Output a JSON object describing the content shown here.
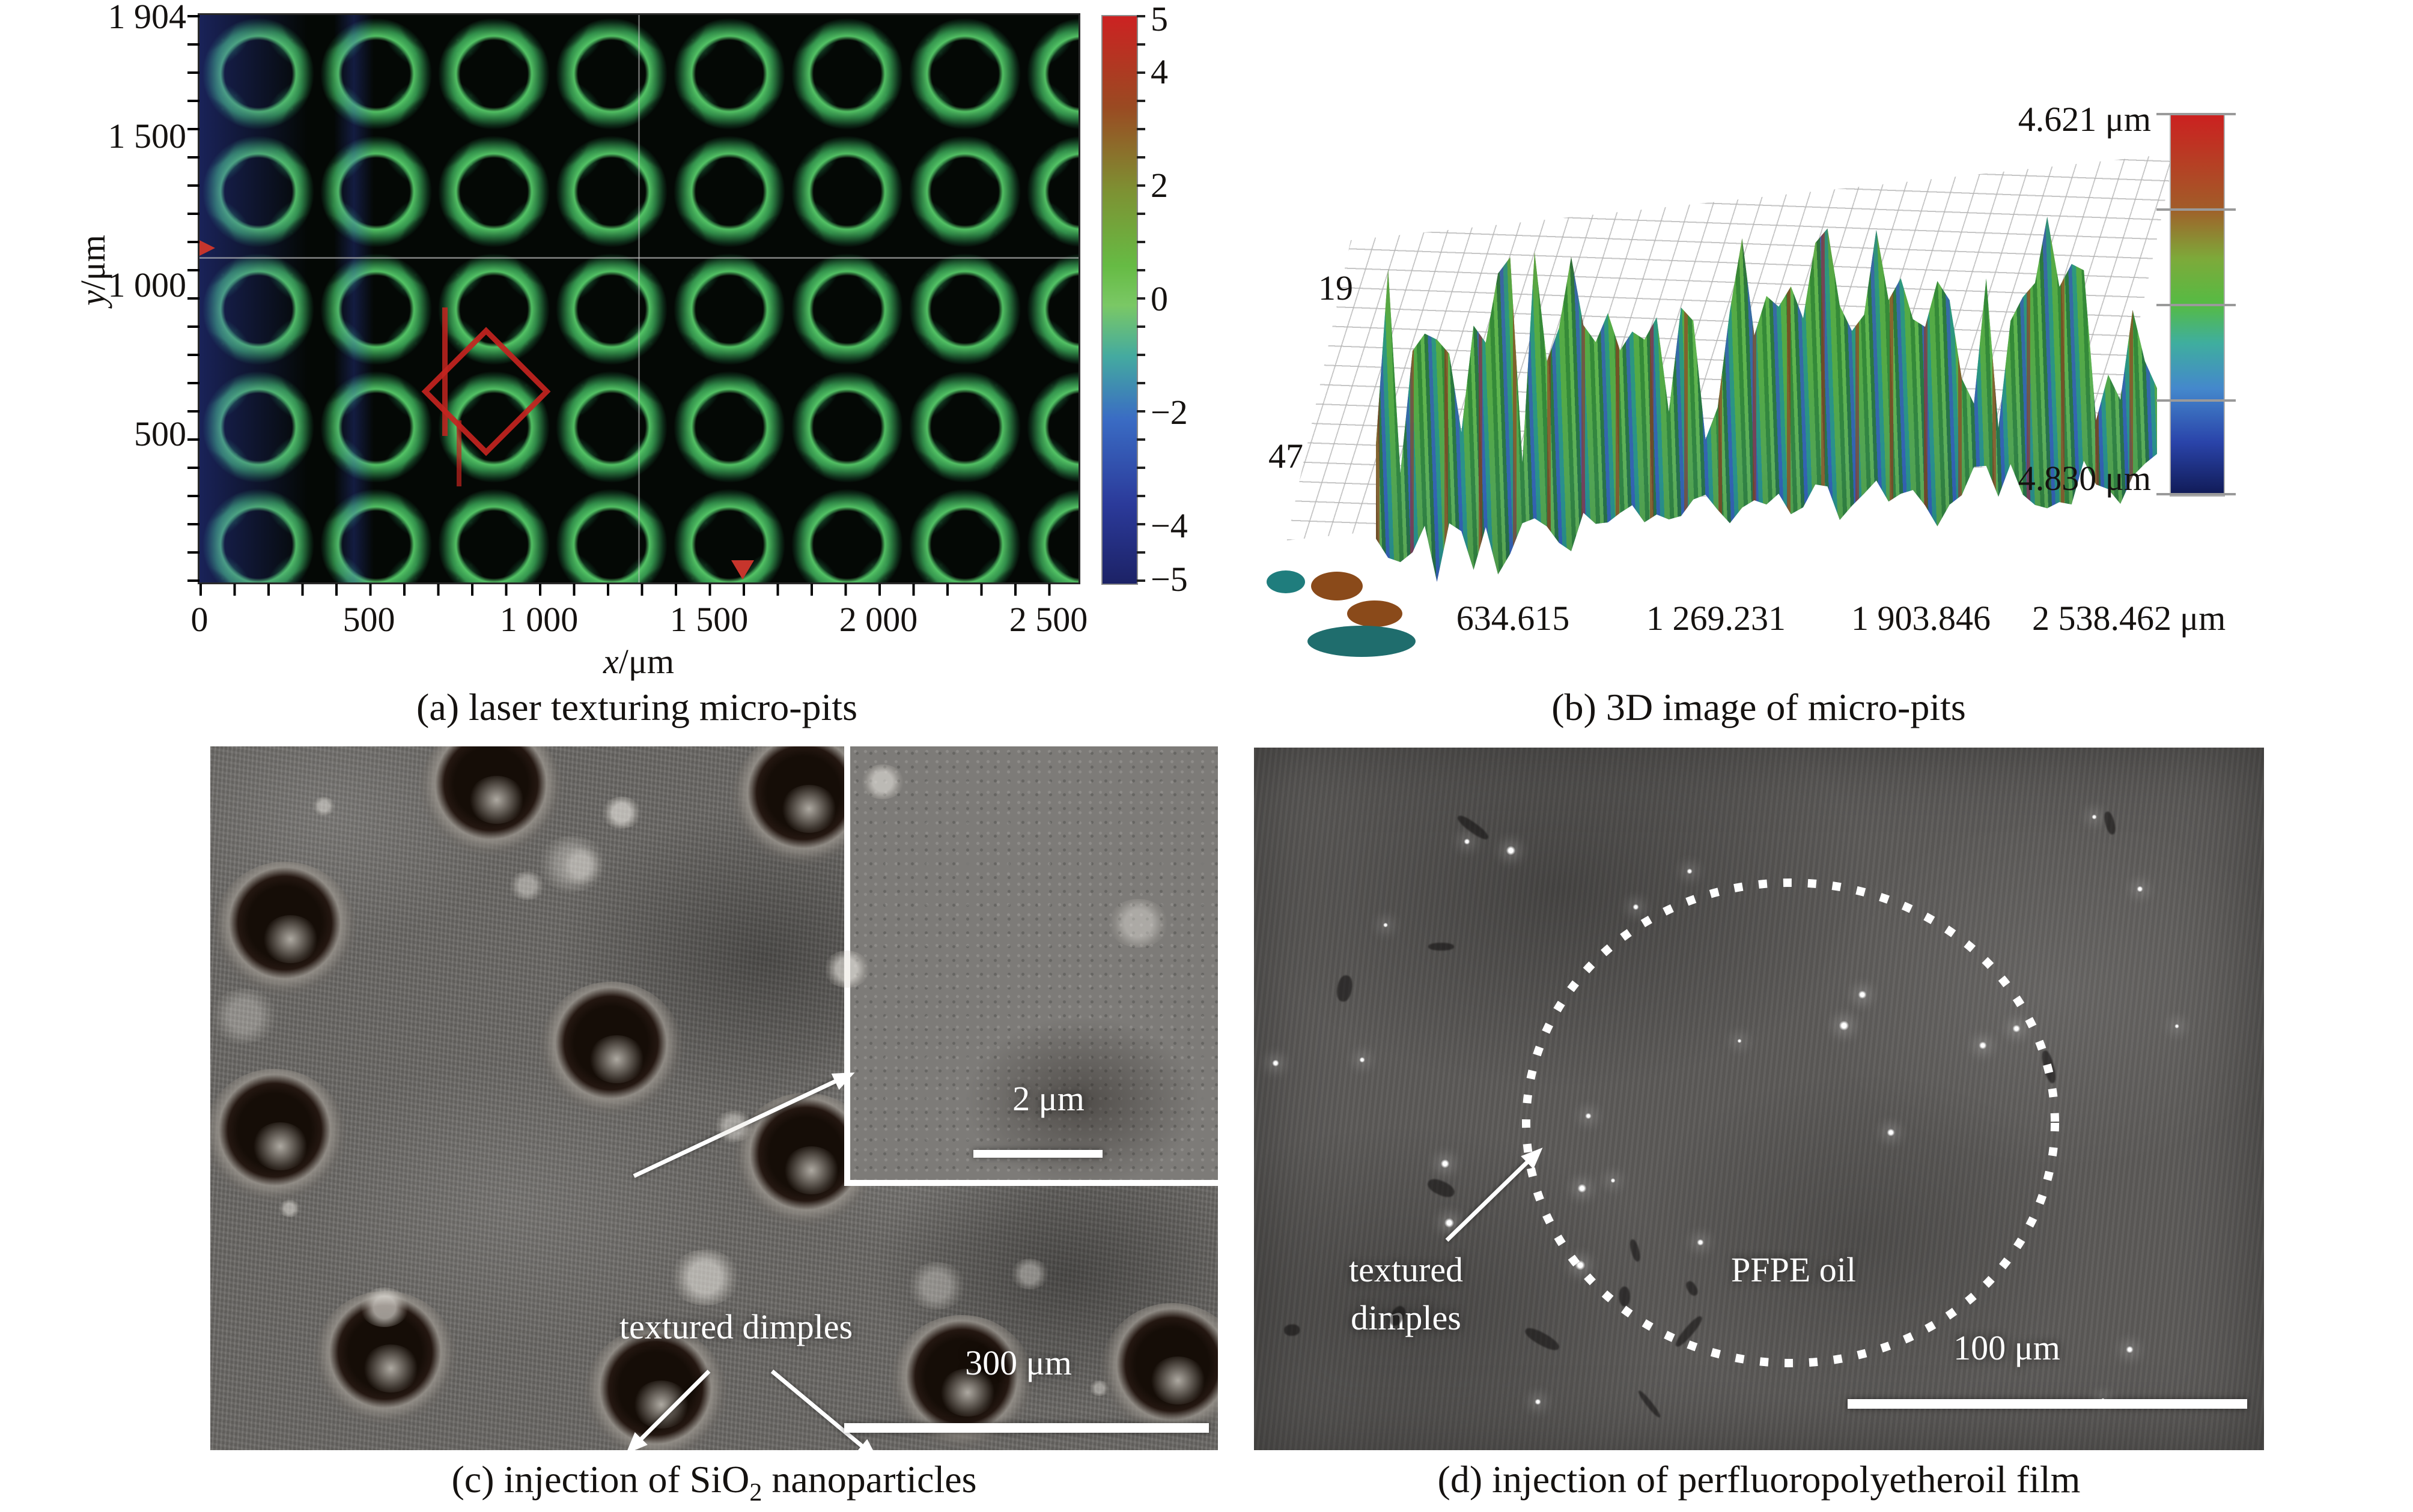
{
  "panel_a": {
    "caption": "(a) laser texturing micro-pits",
    "ylabel_var": "y",
    "ylabel_unit": "/μm",
    "xlabel_var": "x",
    "xlabel_unit": "/μm",
    "y_ticks": [
      "1 904",
      "1 500",
      "1 000",
      "500"
    ],
    "x_ticks": [
      "0",
      "500",
      "1 000",
      "1 500",
      "2 000",
      "2 500"
    ],
    "colorbar_ticks": [
      "5",
      "4",
      "2",
      "0",
      "−2",
      "−4",
      "−5"
    ]
  },
  "panel_b": {
    "caption": "(b) 3D image of micro-pits",
    "colorbar_max": "4.621 μm",
    "colorbar_min": "4.830 μm",
    "left_tick_top": "19",
    "left_tick_bottom": "47",
    "x_ticks": [
      "634.615",
      "1 269.231",
      "1 903.846",
      "2 538.462"
    ],
    "x_unit": "μm"
  },
  "panel_c": {
    "caption_pre": "(c) injection of SiO",
    "caption_sub": "2",
    "caption_post": " nanoparticles",
    "dimples_label": "textured dimples",
    "scalebar_label": "300 μm",
    "inset_scalebar_label": "2 μm"
  },
  "panel_d": {
    "caption": "(d) injection of perfluoropolyetheroil film",
    "oil_label": "PFPE oil",
    "dimples_label_1": "textured",
    "dimples_label_2": "dimples",
    "scalebar_label": "100 μm"
  },
  "colors": {
    "colorbar_top_red": "#cc2222",
    "colorbar_mid_green": "#66bb44",
    "colorbar_bottom_blue": "#1c2266",
    "annotation_red": "#c32420",
    "annotation_white": "#ffffff"
  },
  "chart_data": [
    {
      "type": "heatmap",
      "panel": "a",
      "title": "(a) laser texturing micro-pits",
      "xlabel": "x/μm",
      "ylabel": "y/μm",
      "x_ticks": [
        0,
        500,
        1000,
        1500,
        2000,
        2500
      ],
      "y_ticks": [
        1904,
        1500,
        1000,
        500
      ],
      "xlim": [
        0,
        2588
      ],
      "ylim": [
        0,
        1904
      ],
      "colorbar_ticks": [
        5,
        4,
        2,
        0,
        -2,
        -4,
        -5
      ],
      "colorbar_range_um": [
        -5,
        5
      ],
      "legend_position": "right",
      "grid": false,
      "description": "Surface height map of a laser-textured micro-pit array: dark circular pits (~150 μm) in a staggered hexagonal pattern on a green matrix near 0 μm height, bluish band at left edge, red diamond marker near (600, 650) μm."
    },
    {
      "type": "surface",
      "panel": "b",
      "title": "(b) 3D image of micro-pits",
      "x_ticks": [
        634.615,
        1269.231,
        1903.846,
        2538.462
      ],
      "x_unit": "μm",
      "z_max_um": 4.621,
      "z_min_um": 4.83,
      "left_axis_labels": [
        19,
        47
      ],
      "legend_position": "right",
      "description": "3D topography of the micro-pit array: spiky surface with green/red peaks up to 4.621 μm and deep blue pits down to 4.830 μm, shown above a gray wireframe mesh."
    }
  ]
}
